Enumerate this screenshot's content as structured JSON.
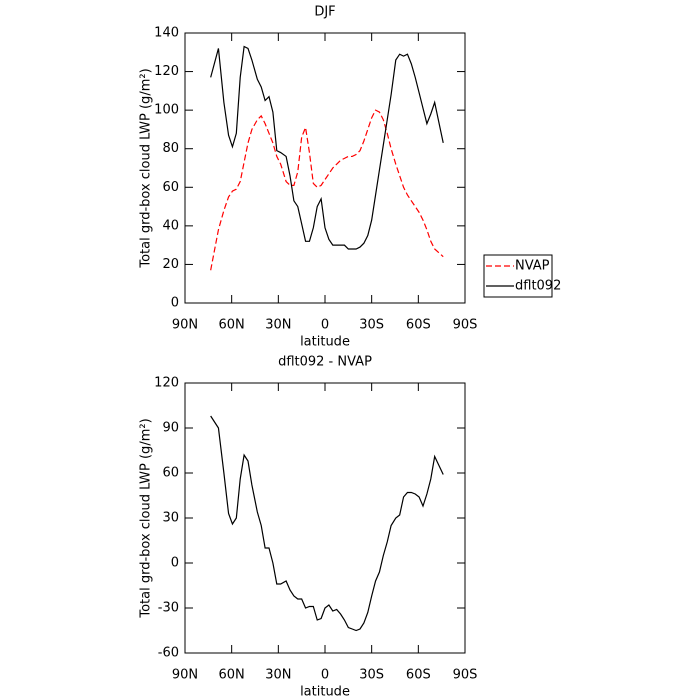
{
  "chart_data": [
    {
      "type": "line",
      "title": "DJF",
      "xlabel": "latitude",
      "ylabel": "Total grd-box cloud LWP (g/m²)",
      "x": [
        73.5,
        68.5,
        65,
        62,
        59.5,
        57,
        54.5,
        52,
        49.5,
        47,
        43.5,
        41,
        38.5,
        36,
        33.5,
        31,
        28.5,
        25,
        22.5,
        20,
        17.5,
        15,
        12.5,
        10,
        7.5,
        5,
        2.5,
        0,
        -2.5,
        -5,
        -7.5,
        -10,
        -12.5,
        -15,
        -17.5,
        -20,
        -22.5,
        -25,
        -27.5,
        -30,
        -32.5,
        -35,
        -37.5,
        -40,
        -42.5,
        -45.5,
        -48,
        -50.5,
        -53,
        -55.5,
        -58,
        -60.5,
        -63,
        -65.5,
        -68,
        -70.5,
        -76
      ],
      "series": [
        {
          "name": "NVAP",
          "color": "#ff0000",
          "style": "dashed",
          "values": [
            17,
            38,
            48,
            55,
            58,
            59,
            63,
            73,
            83,
            90,
            95,
            97,
            93,
            88,
            83,
            76,
            72,
            63,
            61,
            61,
            68,
            86,
            91,
            78,
            62,
            60,
            61,
            64,
            67,
            70,
            72,
            74,
            75,
            76,
            76,
            77,
            79,
            84,
            90,
            96,
            100,
            99,
            95,
            88,
            80,
            72,
            66,
            60,
            56,
            53,
            50,
            47,
            43,
            38,
            32,
            28,
            24
          ]
        },
        {
          "name": "dflt092",
          "color": "#000000",
          "style": "solid",
          "values": [
            117,
            132,
            104,
            87,
            81,
            88,
            117,
            133,
            132,
            126,
            116,
            112,
            105,
            107,
            99,
            79,
            78,
            76,
            66,
            53,
            50,
            41,
            32,
            32,
            39,
            50,
            54,
            39,
            33,
            30,
            30,
            30,
            30,
            28,
            28,
            28,
            29,
            31,
            35,
            43,
            56,
            69,
            82,
            95,
            108,
            126,
            129,
            128,
            129,
            124,
            117,
            109,
            101,
            93,
            98,
            104,
            83
          ]
        }
      ],
      "xlim": [
        90,
        -90
      ],
      "xticks": [
        {
          "value": 90,
          "label": "90N"
        },
        {
          "value": 60,
          "label": "60N"
        },
        {
          "value": 30,
          "label": "30N"
        },
        0,
        {
          "value": -30,
          "label": "30S"
        },
        {
          "value": -60,
          "label": "60S"
        },
        {
          "value": -90,
          "label": "90S"
        }
      ],
      "ylim": [
        0,
        140
      ],
      "yticks": [
        0,
        20,
        40,
        60,
        80,
        100,
        120,
        140
      ],
      "legend": "outside-right"
    },
    {
      "type": "line",
      "title": "dflt092 - NVAP",
      "xlabel": "latitude",
      "ylabel": "Total grd-box cloud LWP (g/m²)",
      "x": [
        73.5,
        68.5,
        65,
        62,
        59.5,
        57,
        54.5,
        52,
        49.5,
        47,
        43.5,
        41,
        38.5,
        36,
        33.5,
        31,
        28.5,
        25,
        22.5,
        20,
        17.5,
        15,
        12.5,
        10,
        7.5,
        5,
        2.5,
        0,
        -2.5,
        -5,
        -7.5,
        -10,
        -12.5,
        -15,
        -17.5,
        -20,
        -22.5,
        -25,
        -27.5,
        -30,
        -32.5,
        -35,
        -37.5,
        -40,
        -42.5,
        -45.5,
        -48,
        -50.5,
        -53,
        -55.5,
        -58,
        -60.5,
        -63,
        -65.5,
        -68,
        -70.5,
        -76
      ],
      "series": [
        {
          "color": "#000000",
          "style": "solid",
          "values": [
            98,
            90,
            60,
            33,
            26,
            30,
            56,
            72,
            68,
            52,
            34,
            25,
            10,
            10,
            0,
            -14,
            -14,
            -12,
            -18,
            -22,
            -24,
            -24,
            -30,
            -29,
            -29,
            -38,
            -37,
            -30,
            -28,
            -32,
            -31,
            -34,
            -38,
            -43,
            -44,
            -45,
            -44,
            -40,
            -33,
            -22,
            -12,
            -6,
            5,
            14,
            25,
            30,
            32,
            44,
            47,
            47,
            46,
            44,
            38,
            46,
            56,
            71,
            59
          ]
        }
      ],
      "xlim": [
        90,
        -90
      ],
      "xticks": [
        {
          "value": 90,
          "label": "90N"
        },
        {
          "value": 60,
          "label": "60N"
        },
        {
          "value": 30,
          "label": "30N"
        },
        0,
        {
          "value": -30,
          "label": "30S"
        },
        {
          "value": -60,
          "label": "60S"
        },
        {
          "value": -90,
          "label": "90S"
        }
      ],
      "ylim": [
        -60,
        120
      ],
      "yticks": [
        -60,
        -30,
        0,
        30,
        60,
        90,
        120
      ]
    }
  ]
}
